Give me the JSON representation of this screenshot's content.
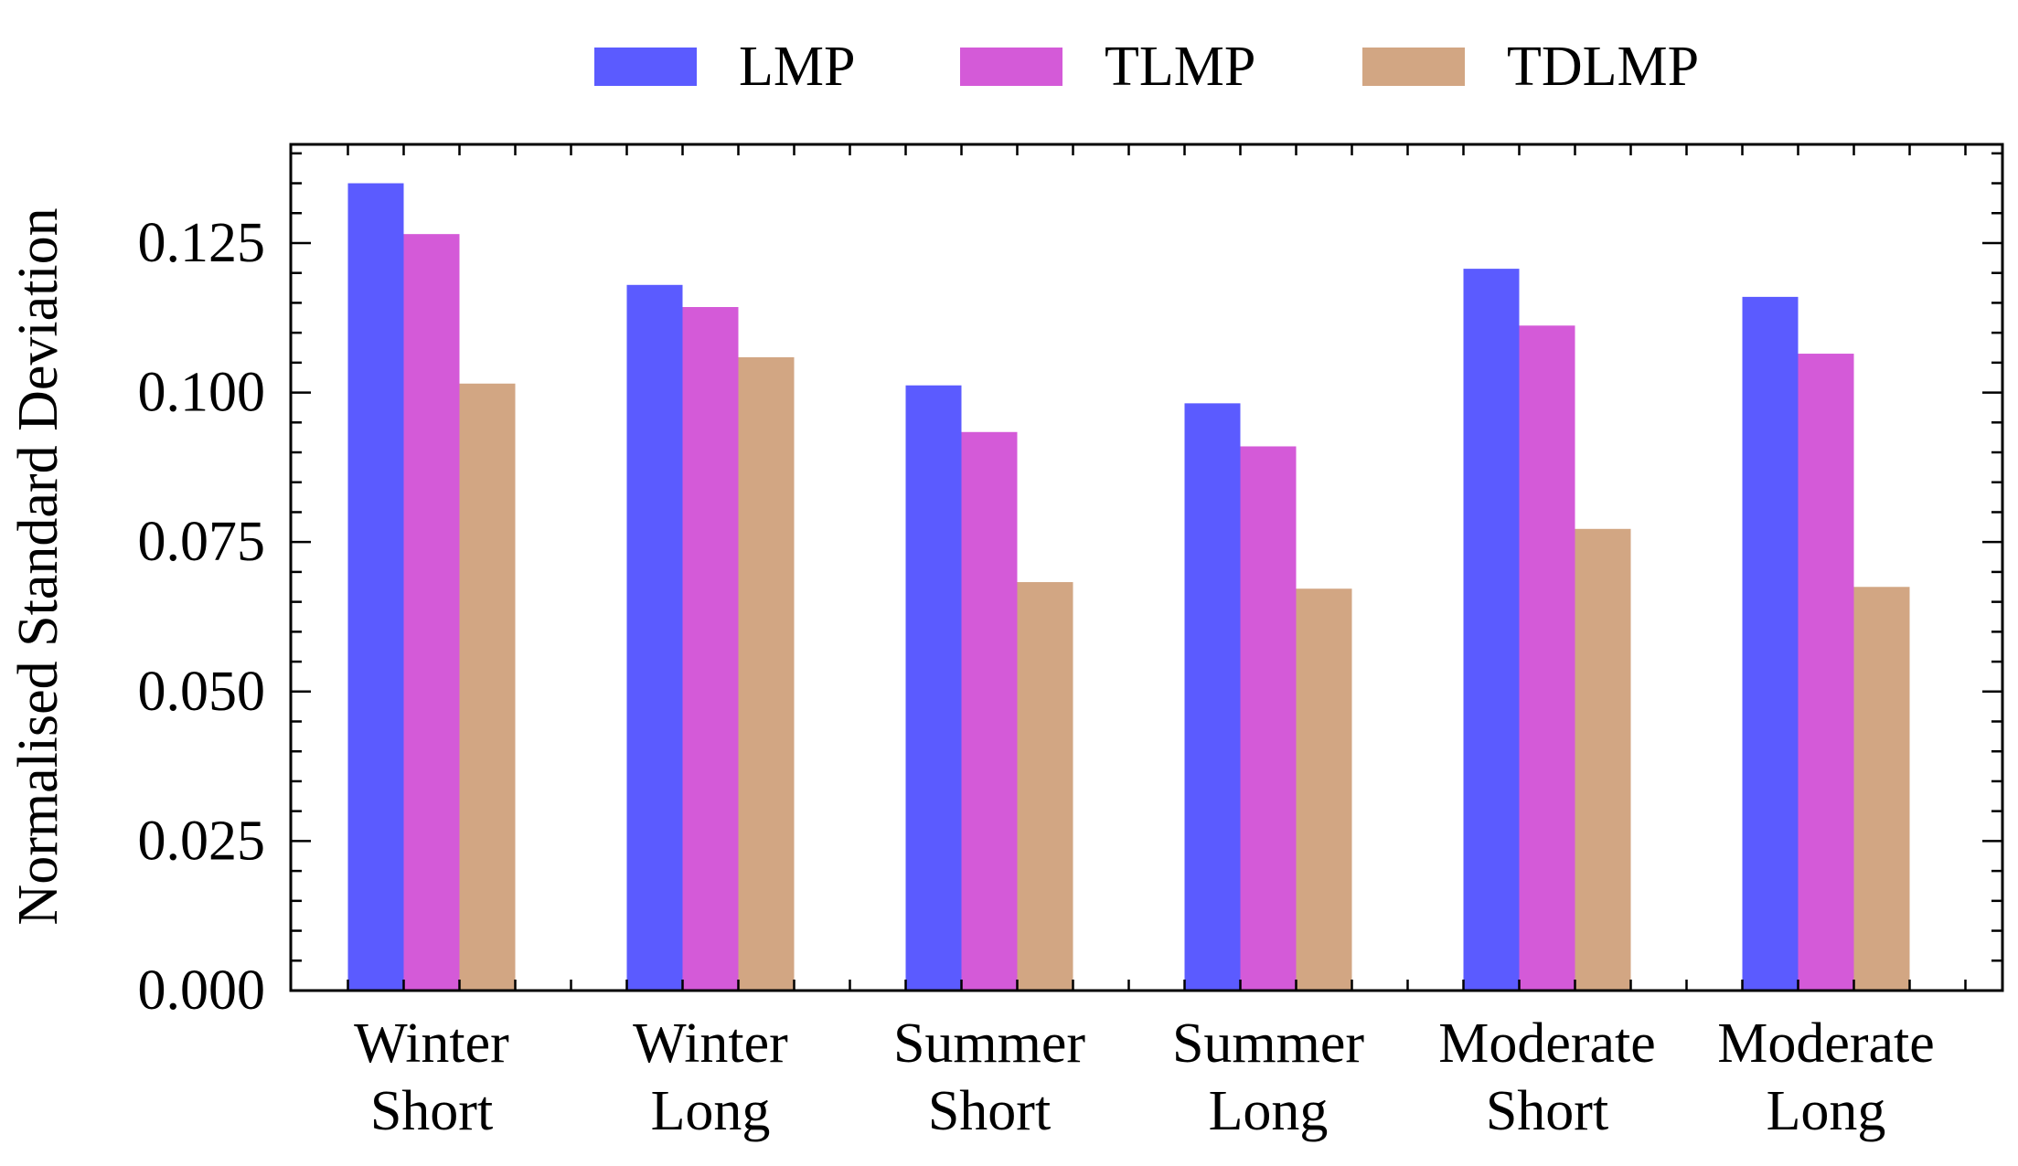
{
  "chart_data": {
    "type": "bar",
    "categories": [
      [
        "Winter",
        "Short"
      ],
      [
        "Winter",
        "Long"
      ],
      [
        "Summer",
        "Short"
      ],
      [
        "Summer",
        "Long"
      ],
      [
        "Moderate",
        "Short"
      ],
      [
        "Moderate",
        "Long"
      ]
    ],
    "series": [
      {
        "name": "LMP",
        "color": "#5b5bff",
        "values": [
          0.135,
          0.118,
          0.1012,
          0.0982,
          0.1207,
          0.116
        ]
      },
      {
        "name": "TLMP",
        "color": "#d45ad8",
        "values": [
          0.1265,
          0.1143,
          0.0934,
          0.091,
          0.1112,
          0.1065
        ]
      },
      {
        "name": "TDLMP",
        "color": "#d2a683",
        "values": [
          0.1015,
          0.1059,
          0.0683,
          0.0672,
          0.0772,
          0.0675
        ]
      }
    ],
    "title": "",
    "xlabel": "",
    "ylabel": "Normalised Standard Deviation",
    "ylim": [
      0,
      0.1415
    ],
    "yticks": [
      "0.000",
      "0.025",
      "0.050",
      "0.075",
      "0.100",
      "0.125"
    ],
    "grid": false,
    "legend_position": "top-center"
  }
}
